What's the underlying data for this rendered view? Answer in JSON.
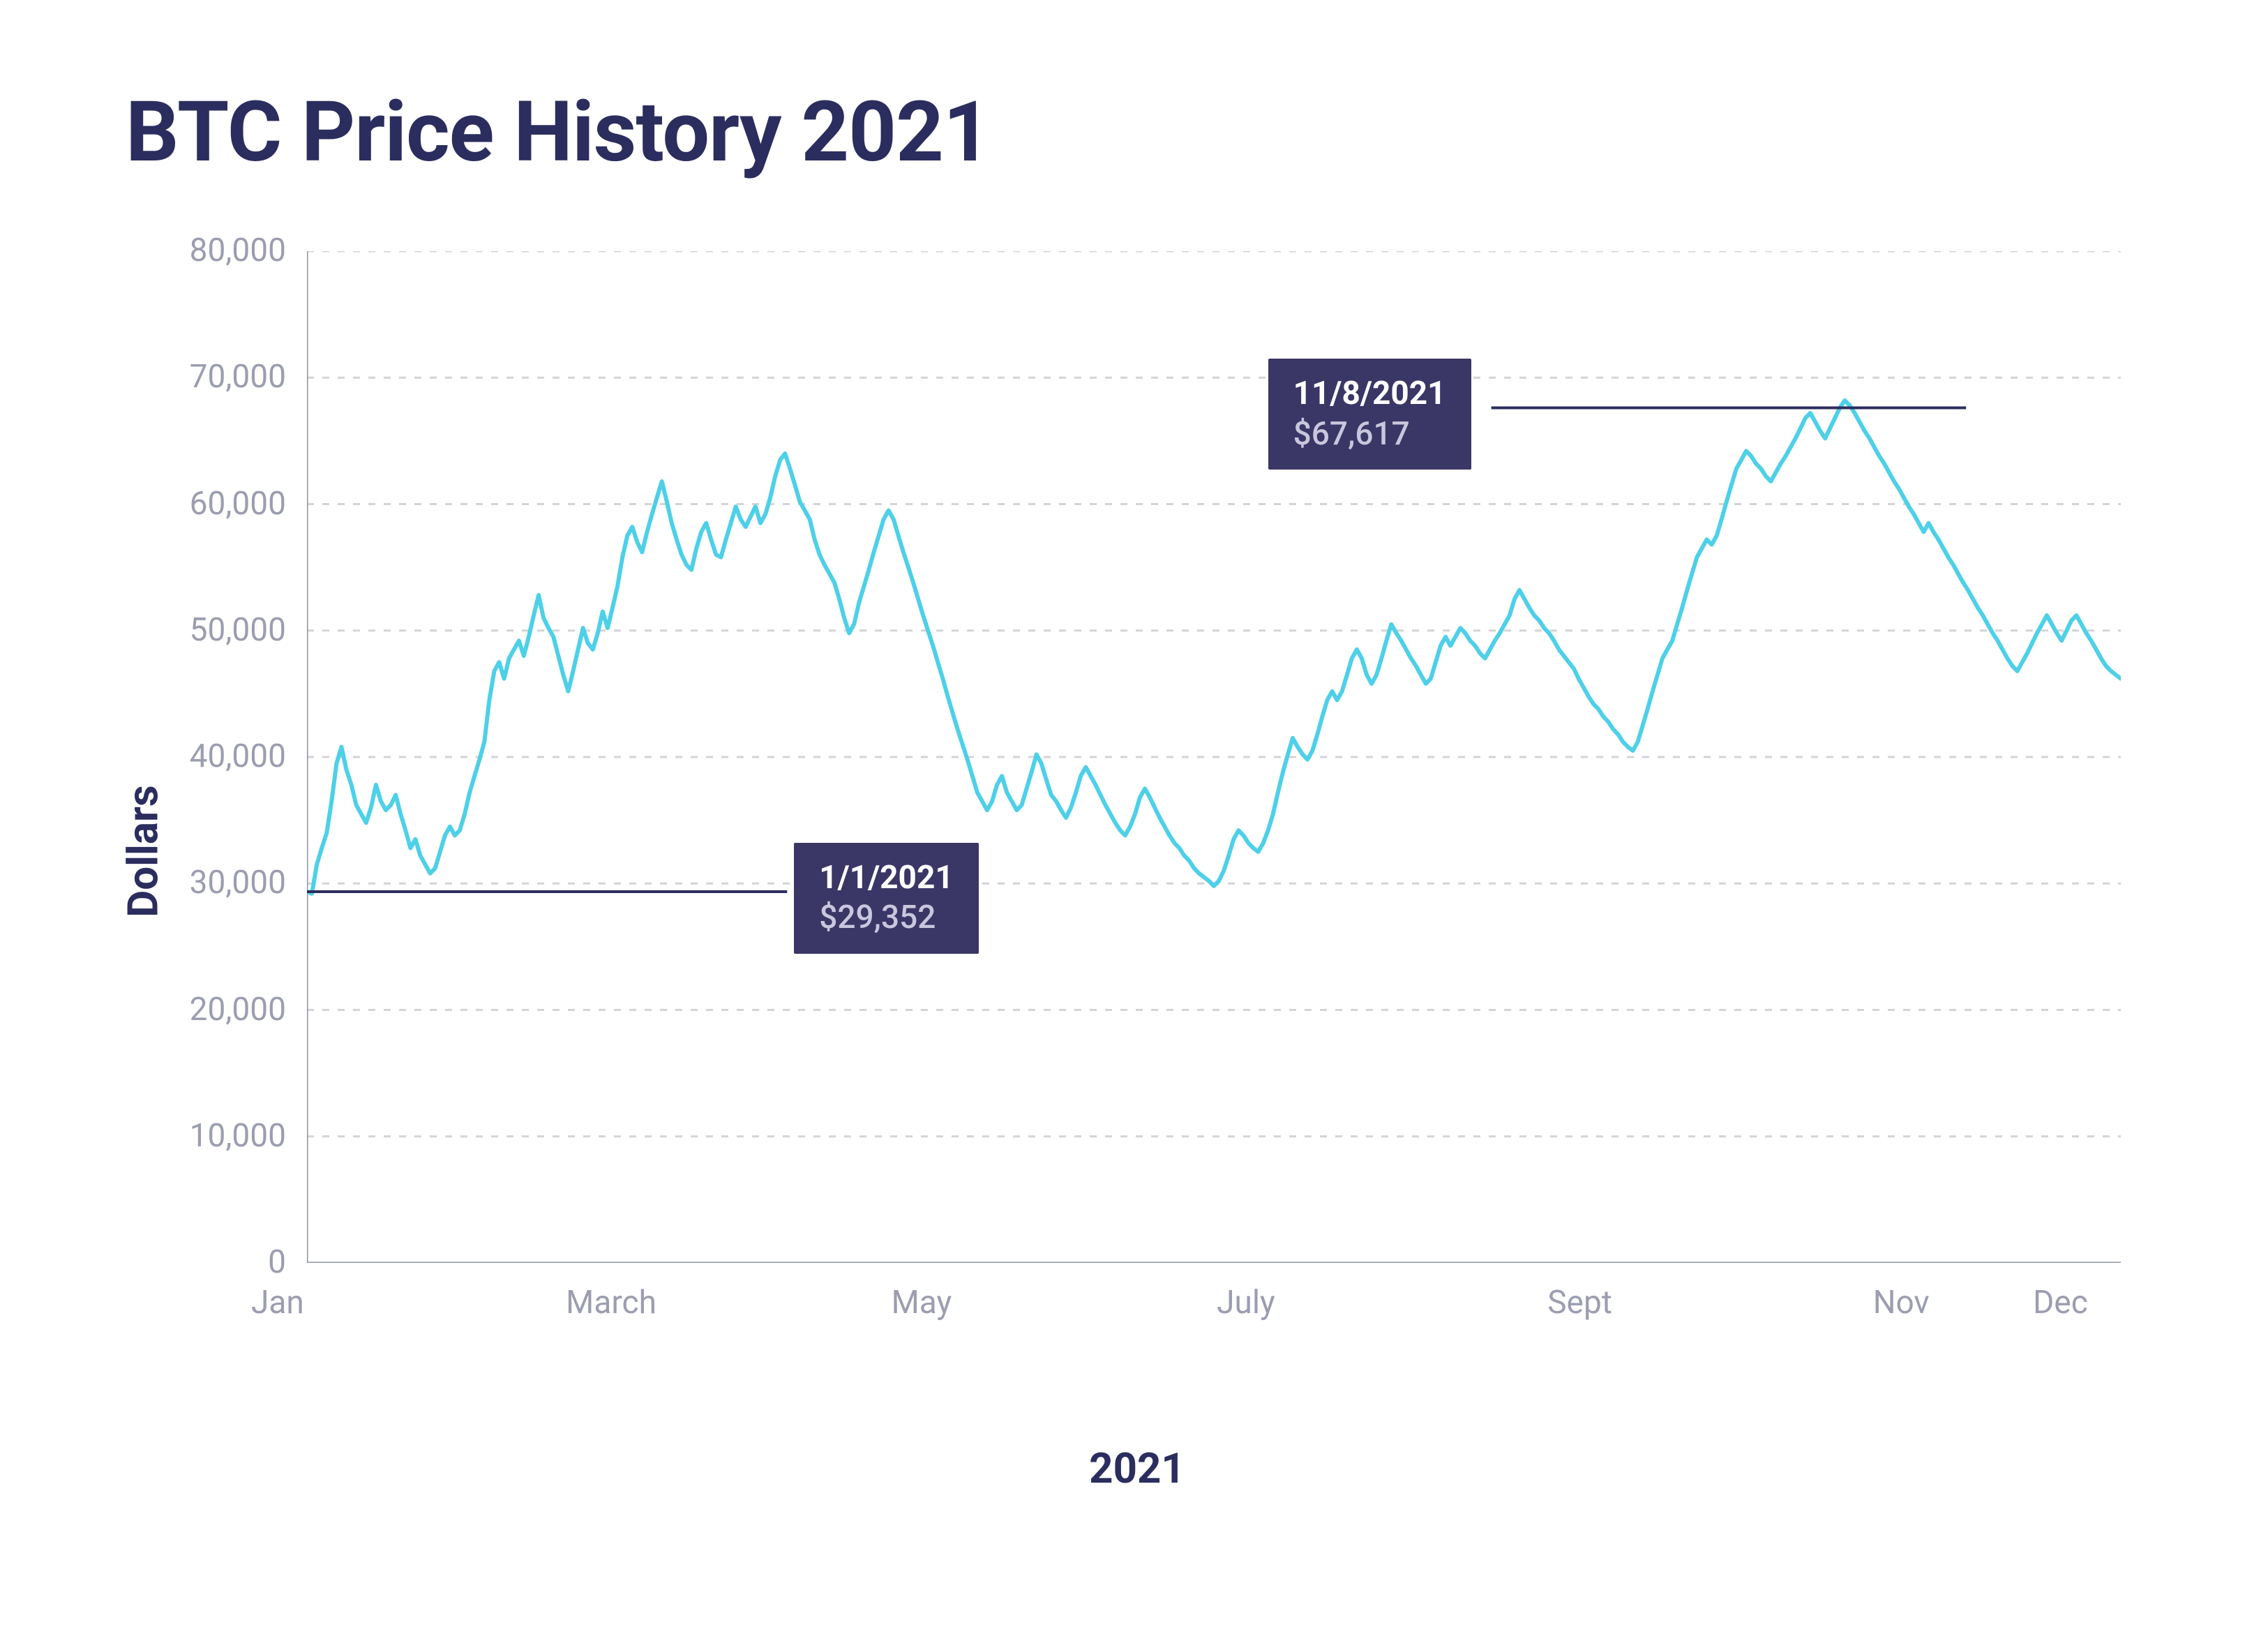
{
  "title": "BTC Price History 2021",
  "chart": {
    "type": "line",
    "ylabel": "Dollars",
    "xlabel": "2021",
    "ylim": [
      0,
      80000
    ],
    "ytick_step": 10000,
    "ytick_labels": [
      "0",
      "10,000",
      "20,000",
      "30,000",
      "40,000",
      "50,000",
      "60,000",
      "70,000",
      "80,000"
    ],
    "xtick_days": [
      0,
      59,
      120,
      181,
      243,
      304,
      334
    ],
    "xtick_labels": [
      "Jan",
      "March",
      "May",
      "July",
      "Sept",
      "Nov",
      "Dec"
    ],
    "x_days_total": 340,
    "line_color": "#4dd0e8",
    "line_width": 6,
    "grid_color": "#d4d4d6",
    "grid_dash": "10 12",
    "axis_text_color": "#9b9db0",
    "axis_line_color": "#8f92af",
    "background_color": "#ffffff",
    "tick_fontsize": 46,
    "label_fontsize": 60,
    "title_fontsize": 120,
    "title_color": "#2b2d5e",
    "label_color": "#2b2d5e",
    "callout_bg": "#3a3666",
    "callout_date_color": "#ffffff",
    "callout_price_color": "#c9c6dd",
    "callout_line_color": "#2b2d5e",
    "callouts": [
      {
        "date_label": "1/1/2021",
        "price_label": "$29,352",
        "day": 0,
        "value": 29352,
        "line_to_day": 90,
        "box_side": "right"
      },
      {
        "date_label": "11/8/2021",
        "price_label": "$67,617",
        "day": 311,
        "value": 67617,
        "line_to_day": 222,
        "box_side": "left"
      }
    ],
    "series": [
      29352,
      29200,
      31500,
      32800,
      34000,
      36500,
      39500,
      40800,
      39000,
      37800,
      36200,
      35500,
      34800,
      36000,
      37800,
      36500,
      35800,
      36200,
      37000,
      35500,
      34200,
      32800,
      33500,
      32200,
      31500,
      30800,
      31200,
      32500,
      33800,
      34500,
      33800,
      34200,
      35500,
      37200,
      38500,
      39800,
      41200,
      44500,
      46800,
      47500,
      46200,
      47800,
      48500,
      49200,
      48000,
      49500,
      51200,
      52800,
      51000,
      50200,
      49500,
      48000,
      46500,
      45200,
      46800,
      48500,
      50200,
      49000,
      48500,
      49800,
      51500,
      50200,
      51800,
      53500,
      55800,
      57500,
      58200,
      57000,
      56200,
      57800,
      59200,
      60500,
      61800,
      60200,
      58500,
      57200,
      56000,
      55200,
      54800,
      56500,
      57800,
      58500,
      57200,
      56000,
      55800,
      57200,
      58500,
      59800,
      58800,
      58200,
      59000,
      59800,
      58500,
      59200,
      60500,
      62200,
      63500,
      64000,
      62800,
      61500,
      60200,
      59500,
      58800,
      57200,
      56000,
      55200,
      54500,
      53800,
      52500,
      51000,
      49800,
      50500,
      52200,
      53500,
      54800,
      56200,
      57500,
      58800,
      59500,
      58800,
      57500,
      56200,
      55000,
      53800,
      52500,
      51200,
      50000,
      48800,
      47500,
      46200,
      44800,
      43500,
      42200,
      41000,
      39800,
      38500,
      37200,
      36500,
      35800,
      36500,
      37800,
      38500,
      37200,
      36500,
      35800,
      36200,
      37500,
      38800,
      40200,
      39500,
      38200,
      37000,
      36500,
      35800,
      35200,
      36000,
      37200,
      38500,
      39200,
      38500,
      37800,
      37000,
      36200,
      35500,
      34800,
      34200,
      33800,
      34500,
      35500,
      36800,
      37500,
      36800,
      36000,
      35200,
      34500,
      33800,
      33200,
      32800,
      32200,
      31800,
      31200,
      30800,
      30500,
      30200,
      29800,
      30200,
      31000,
      32200,
      33500,
      34200,
      33800,
      33200,
      32800,
      32500,
      33200,
      34200,
      35500,
      37200,
      38800,
      40200,
      41500,
      40800,
      40200,
      39800,
      40500,
      41800,
      43200,
      44500,
      45200,
      44500,
      45200,
      46500,
      47800,
      48500,
      47800,
      46500,
      45800,
      46500,
      47800,
      49200,
      50500,
      49800,
      49200,
      48500,
      47800,
      47200,
      46500,
      45800,
      46200,
      47500,
      48800,
      49500,
      48800,
      49500,
      50200,
      49800,
      49200,
      48800,
      48200,
      47800,
      48500,
      49200,
      49800,
      50500,
      51200,
      52500,
      53200,
      52500,
      51800,
      51200,
      50800,
      50200,
      49800,
      49200,
      48500,
      48000,
      47500,
      47000,
      46200,
      45500,
      44800,
      44200,
      43800,
      43200,
      42800,
      42200,
      41800,
      41200,
      40800,
      40500,
      41200,
      42500,
      43800,
      45200,
      46500,
      47800,
      48500,
      49200,
      50500,
      51800,
      53200,
      54500,
      55800,
      56500,
      57200,
      56800,
      57500,
      58800,
      60200,
      61500,
      62800,
      63500,
      64200,
      63800,
      63200,
      62800,
      62200,
      61800,
      62500,
      63200,
      63800,
      64500,
      65200,
      66000,
      66800,
      67200,
      66500,
      65800,
      65200,
      66000,
      66800,
      67617,
      68200,
      67800,
      67200,
      66500,
      65800,
      65200,
      64500,
      63800,
      63200,
      62500,
      61800,
      61200,
      60500,
      59800,
      59200,
      58500,
      57800,
      58500,
      57800,
      57200,
      56500,
      55800,
      55200,
      54500,
      53800,
      53200,
      52500,
      51800,
      51200,
      50500,
      49800,
      49200,
      48500,
      47800,
      47200,
      46800,
      47500,
      48200,
      49000,
      49800,
      50500,
      51200,
      50500,
      49800,
      49200,
      50000,
      50800,
      51200,
      50500,
      49800,
      49200,
      48500,
      47800,
      47200,
      46800,
      46500,
      46200
    ]
  }
}
